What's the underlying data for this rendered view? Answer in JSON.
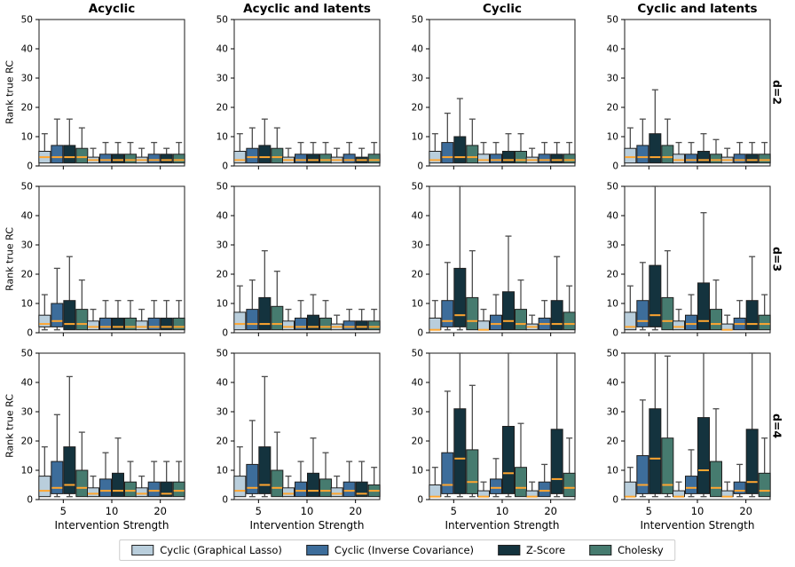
{
  "chart_data": {
    "type": "boxplot",
    "col_titles": [
      "Acyclic",
      "Acyclic and latents",
      "Cyclic",
      "Cyclic and latents"
    ],
    "row_labels": [
      "d=2",
      "d=3",
      "d=4"
    ],
    "xlabel": "Intervention Strength",
    "ylabel": "Rank true RC",
    "x_categories": [
      "5",
      "10",
      "20"
    ],
    "yticks": [
      0,
      10,
      20,
      30,
      40,
      50
    ],
    "ylim": [
      0,
      50
    ],
    "grid": false,
    "legend_position": "bottom",
    "median_color": "#ffa630",
    "whisker_color": "#4d4d4d",
    "box_edge_color": "#1f1f1f",
    "spine_color": "#2e2e2e",
    "series": [
      {
        "name": "Cyclic (Graphical Lasso)",
        "color": "#b9cedc"
      },
      {
        "name": "Cyclic (Inverse Covariance)",
        "color": "#3d6d9b"
      },
      {
        "name": "Z-Score",
        "color": "#14333e"
      },
      {
        "name": "Cholesky",
        "color": "#467b6f"
      }
    ],
    "box_format": "[whisker_low, q1, median, q3, whisker_high] per series, per x-category",
    "subplots": [
      {
        "row": "d=2",
        "col": "Acyclic",
        "groups": [
          [
            [
              1,
              1,
              3,
              5,
              11
            ],
            [
              1,
              1,
              3,
              7,
              16
            ],
            [
              1,
              1,
              3,
              7,
              16
            ],
            [
              1,
              1,
              3,
              6,
              13
            ]
          ],
          [
            [
              1,
              1,
              2,
              3,
              6
            ],
            [
              1,
              1,
              2,
              4,
              8
            ],
            [
              1,
              1,
              2,
              4,
              8
            ],
            [
              1,
              1,
              2,
              4,
              8
            ]
          ],
          [
            [
              1,
              1,
              2,
              3,
              6
            ],
            [
              1,
              1,
              2,
              4,
              8
            ],
            [
              1,
              1,
              2,
              4,
              6
            ],
            [
              1,
              1,
              2,
              4,
              8
            ]
          ]
        ]
      },
      {
        "row": "d=2",
        "col": "Acyclic and latents",
        "groups": [
          [
            [
              1,
              1,
              2,
              5,
              11
            ],
            [
              1,
              1,
              3,
              6,
              13
            ],
            [
              1,
              1,
              3,
              7,
              16
            ],
            [
              1,
              1,
              3,
              6,
              13
            ]
          ],
          [
            [
              1,
              1,
              2,
              3,
              6
            ],
            [
              1,
              1,
              2,
              4,
              8
            ],
            [
              1,
              1,
              2,
              4,
              8
            ],
            [
              1,
              1,
              2,
              4,
              8
            ]
          ],
          [
            [
              1,
              1,
              2,
              3,
              6
            ],
            [
              1,
              1,
              2,
              4,
              8
            ],
            [
              1,
              1,
              2,
              3,
              6
            ],
            [
              1,
              1,
              2,
              4,
              8
            ]
          ]
        ]
      },
      {
        "row": "d=2",
        "col": "Cyclic",
        "groups": [
          [
            [
              1,
              1,
              2,
              5,
              11
            ],
            [
              1,
              1,
              3,
              8,
              18
            ],
            [
              1,
              1,
              3,
              10,
              23
            ],
            [
              1,
              1,
              3,
              7,
              16
            ]
          ],
          [
            [
              1,
              1,
              2,
              4,
              8
            ],
            [
              1,
              1,
              2,
              4,
              8
            ],
            [
              1,
              1,
              2,
              5,
              11
            ],
            [
              1,
              1,
              2,
              5,
              11
            ]
          ],
          [
            [
              1,
              1,
              2,
              3,
              6
            ],
            [
              1,
              1,
              2,
              4,
              8
            ],
            [
              1,
              1,
              2,
              4,
              8
            ],
            [
              1,
              1,
              2,
              4,
              8
            ]
          ]
        ]
      },
      {
        "row": "d=2",
        "col": "Cyclic and latents",
        "groups": [
          [
            [
              1,
              1,
              3,
              6,
              13
            ],
            [
              1,
              1,
              3,
              7,
              16
            ],
            [
              1,
              1,
              3,
              11,
              26
            ],
            [
              1,
              1,
              3,
              7,
              16
            ]
          ],
          [
            [
              1,
              1,
              2,
              4,
              8
            ],
            [
              1,
              1,
              2,
              4,
              8
            ],
            [
              1,
              1,
              2,
              5,
              11
            ],
            [
              1,
              1,
              2,
              4,
              9
            ]
          ],
          [
            [
              1,
              1,
              2,
              3,
              6
            ],
            [
              1,
              1,
              2,
              4,
              8
            ],
            [
              1,
              1,
              2,
              4,
              8
            ],
            [
              1,
              1,
              2,
              4,
              8
            ]
          ]
        ]
      },
      {
        "row": "d=3",
        "col": "Acyclic",
        "groups": [
          [
            [
              1,
              2,
              3,
              6,
              13
            ],
            [
              1,
              2,
              4,
              10,
              22
            ],
            [
              1,
              1,
              3,
              11,
              26
            ],
            [
              1,
              1,
              3,
              8,
              18
            ]
          ],
          [
            [
              1,
              1,
              2,
              4,
              8
            ],
            [
              1,
              1,
              2,
              5,
              11
            ],
            [
              1,
              1,
              2,
              5,
              11
            ],
            [
              1,
              1,
              2,
              5,
              11
            ]
          ],
          [
            [
              1,
              1,
              2,
              4,
              8
            ],
            [
              1,
              1,
              2,
              5,
              11
            ],
            [
              1,
              1,
              2,
              5,
              11
            ],
            [
              1,
              1,
              2,
              5,
              11
            ]
          ]
        ]
      },
      {
        "row": "d=3",
        "col": "Acyclic and latents",
        "groups": [
          [
            [
              1,
              1,
              3,
              7,
              16
            ],
            [
              1,
              1,
              3,
              8,
              18
            ],
            [
              1,
              1,
              3,
              12,
              28
            ],
            [
              1,
              1,
              3,
              9,
              21
            ]
          ],
          [
            [
              1,
              1,
              2,
              4,
              8
            ],
            [
              1,
              1,
              2,
              5,
              11
            ],
            [
              1,
              1,
              2,
              6,
              13
            ],
            [
              1,
              1,
              2,
              5,
              11
            ]
          ],
          [
            [
              1,
              1,
              2,
              3,
              6
            ],
            [
              1,
              1,
              2,
              4,
              8
            ],
            [
              1,
              1,
              2,
              4,
              8
            ],
            [
              1,
              1,
              2,
              4,
              8
            ]
          ]
        ]
      },
      {
        "row": "d=3",
        "col": "Cyclic",
        "groups": [
          [
            [
              1,
              1,
              1,
              5,
              11
            ],
            [
              1,
              2,
              4,
              11,
              24
            ],
            [
              1,
              2,
              6,
              22,
              50
            ],
            [
              1,
              1,
              4,
              12,
              28
            ]
          ],
          [
            [
              1,
              1,
              1,
              4,
              8
            ],
            [
              1,
              1,
              3,
              6,
              13
            ],
            [
              1,
              1,
              4,
              14,
              33
            ],
            [
              1,
              1,
              3,
              8,
              18
            ]
          ],
          [
            [
              1,
              1,
              2,
              3,
              6
            ],
            [
              1,
              1,
              3,
              5,
              11
            ],
            [
              1,
              1,
              3,
              11,
              26
            ],
            [
              1,
              1,
              3,
              7,
              16
            ]
          ]
        ]
      },
      {
        "row": "d=3",
        "col": "Cyclic and latents",
        "groups": [
          [
            [
              1,
              1,
              2,
              7,
              16
            ],
            [
              1,
              2,
              4,
              11,
              24
            ],
            [
              1,
              2,
              6,
              23,
              50
            ],
            [
              1,
              1,
              4,
              12,
              28
            ]
          ],
          [
            [
              1,
              1,
              2,
              4,
              8
            ],
            [
              1,
              1,
              3,
              6,
              13
            ],
            [
              1,
              1,
              4,
              17,
              41
            ],
            [
              1,
              1,
              3,
              8,
              18
            ]
          ],
          [
            [
              1,
              1,
              1,
              3,
              6
            ],
            [
              1,
              1,
              3,
              5,
              11
            ],
            [
              1,
              1,
              3,
              11,
              26
            ],
            [
              1,
              1,
              3,
              6,
              13
            ]
          ]
        ]
      },
      {
        "row": "d=4",
        "col": "Acyclic",
        "groups": [
          [
            [
              1,
              1,
              3,
              8,
              18
            ],
            [
              1,
              2,
              4,
              13,
              29
            ],
            [
              1,
              2,
              5,
              18,
              42
            ],
            [
              1,
              1,
              4,
              10,
              23
            ]
          ],
          [
            [
              1,
              1,
              2,
              4,
              8
            ],
            [
              1,
              1,
              3,
              7,
              16
            ],
            [
              1,
              1,
              3,
              9,
              21
            ],
            [
              1,
              1,
              3,
              6,
              13
            ]
          ],
          [
            [
              1,
              1,
              2,
              4,
              8
            ],
            [
              1,
              1,
              3,
              6,
              13
            ],
            [
              1,
              1,
              2,
              6,
              13
            ],
            [
              1,
              1,
              3,
              6,
              13
            ]
          ]
        ]
      },
      {
        "row": "d=4",
        "col": "Acyclic and latents",
        "groups": [
          [
            [
              1,
              1,
              3,
              8,
              18
            ],
            [
              1,
              2,
              4,
              12,
              27
            ],
            [
              1,
              2,
              5,
              18,
              42
            ],
            [
              1,
              1,
              4,
              10,
              23
            ]
          ],
          [
            [
              1,
              1,
              2,
              4,
              8
            ],
            [
              1,
              1,
              3,
              6,
              13
            ],
            [
              1,
              1,
              3,
              9,
              21
            ],
            [
              1,
              1,
              3,
              7,
              16
            ]
          ],
          [
            [
              1,
              1,
              2,
              4,
              8
            ],
            [
              1,
              1,
              3,
              6,
              13
            ],
            [
              1,
              1,
              2,
              6,
              13
            ],
            [
              1,
              1,
              3,
              5,
              11
            ]
          ]
        ]
      },
      {
        "row": "d=4",
        "col": "Cyclic",
        "groups": [
          [
            [
              1,
              1,
              1,
              5,
              11
            ],
            [
              1,
              2,
              5,
              16,
              37
            ],
            [
              1,
              2,
              14,
              31,
              50
            ],
            [
              1,
              2,
              6,
              17,
              39
            ]
          ],
          [
            [
              1,
              1,
              1,
              3,
              6
            ],
            [
              1,
              2,
              4,
              7,
              14
            ],
            [
              1,
              2,
              9,
              25,
              50
            ],
            [
              1,
              1,
              4,
              11,
              26
            ]
          ],
          [
            [
              1,
              1,
              1,
              3,
              6
            ],
            [
              1,
              1,
              3,
              6,
              12
            ],
            [
              1,
              2,
              7,
              24,
              50
            ],
            [
              1,
              1,
              4,
              9,
              21
            ]
          ]
        ]
      },
      {
        "row": "d=4",
        "col": "Cyclic and latents",
        "groups": [
          [
            [
              1,
              1,
              1,
              6,
              11
            ],
            [
              1,
              2,
              5,
              15,
              34
            ],
            [
              1,
              2,
              14,
              31,
              50
            ],
            [
              1,
              2,
              5,
              21,
              49
            ]
          ],
          [
            [
              1,
              1,
              1,
              3,
              6
            ],
            [
              1,
              2,
              4,
              8,
              17
            ],
            [
              1,
              2,
              10,
              28,
              50
            ],
            [
              1,
              1,
              4,
              13,
              31
            ]
          ],
          [
            [
              1,
              1,
              1,
              3,
              6
            ],
            [
              1,
              2,
              3,
              6,
              12
            ],
            [
              1,
              2,
              6,
              24,
              50
            ],
            [
              1,
              1,
              3,
              9,
              21
            ]
          ]
        ]
      }
    ]
  }
}
